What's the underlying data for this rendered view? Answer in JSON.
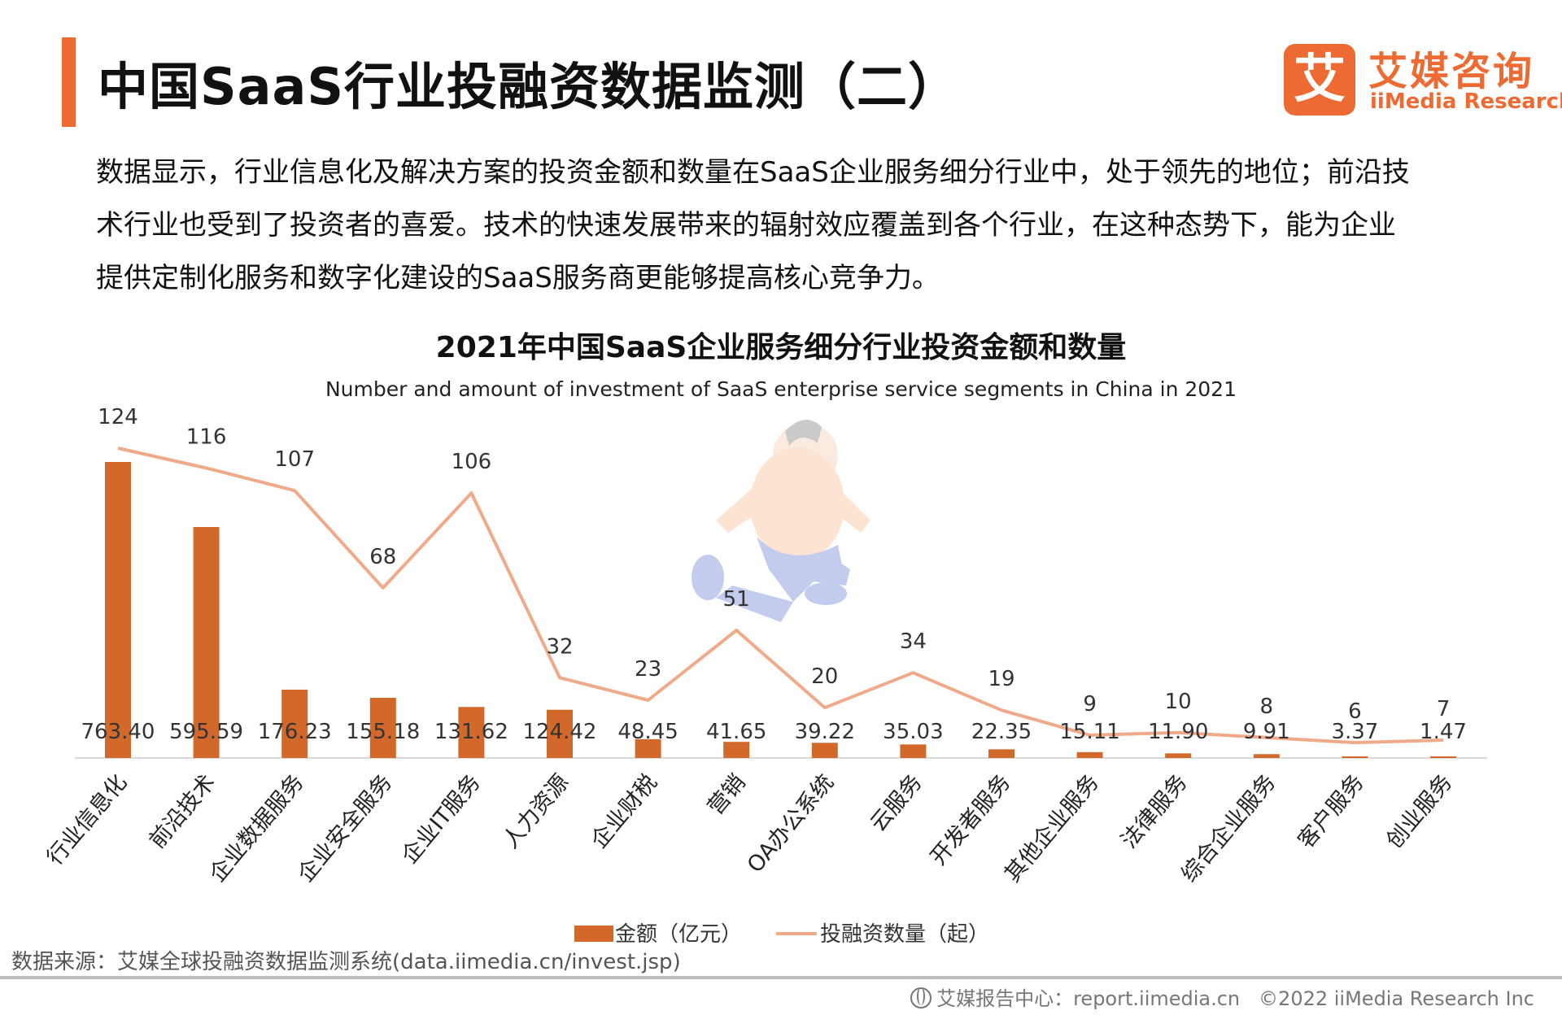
{
  "header": {
    "title": "中国SaaS行业投融资数据监测（二）",
    "logo_cn": "艾媒咨询",
    "logo_en": "iiMedia Research",
    "logo_mark": "艾"
  },
  "description": [
    "数据显示，行业信息化及解决方案的投资金额和数量在SaaS企业服务细分行业中，处于领先的地位；前沿技",
    "术行业也受到了投资者的喜爱。技术的快速发展带来的辐射效应覆盖到各个行业，在这种态势下，能为企业",
    "提供定制化服务和数字化建设的SaaS服务商更能够提高核心竞争力。"
  ],
  "chart_data": {
    "type": "bar",
    "title": "2021年中国SaaS企业服务细分行业投资金额和数量",
    "subtitle": "Number and amount of investment of SaaS enterprise service segments in China in 2021",
    "categories": [
      "行业信息化",
      "前沿技术",
      "企业数据服务",
      "企业安全服务",
      "企业IT服务",
      "人力资源",
      "企业财税",
      "营销",
      "OA办公系统",
      "云服务",
      "开发者服务",
      "其他企业服务",
      "法律服务",
      "综合企业服务",
      "客户服务",
      "创业服务"
    ],
    "series": [
      {
        "name": "金额（亿元）",
        "type": "bar",
        "color": "#d2692b",
        "values": [
          763.4,
          595.59,
          176.23,
          155.18,
          131.62,
          124.42,
          48.45,
          41.65,
          39.22,
          35.03,
          22.35,
          15.11,
          11.9,
          9.91,
          3.37,
          1.47
        ],
        "labels": [
          "763.40",
          "595.59",
          "176.23",
          "155.18",
          "131.62",
          "124.42",
          "48.45",
          "41.65",
          "39.22",
          "35.03",
          "22.35",
          "15.11",
          "11.90",
          "9.91",
          "3.37",
          "1.47"
        ]
      },
      {
        "name": "投融资数量（起）",
        "type": "line",
        "color": "#f0aa8a",
        "values": [
          124,
          116,
          107,
          68,
          106,
          32,
          23,
          51,
          20,
          34,
          19,
          9,
          10,
          8,
          6,
          7
        ]
      }
    ],
    "bar_ylim": [
      0,
      800
    ],
    "line_ylim": [
      -15,
      130
    ],
    "legend_position": "bottom",
    "grid": false
  },
  "source": "数据来源：艾媒全球投融资数据监测系统(data.iimedia.cn/invest.jsp)",
  "footer": {
    "site": "艾媒报告中心：report.iimedia.cn",
    "copyright": "©2022  iiMedia Research  Inc"
  }
}
